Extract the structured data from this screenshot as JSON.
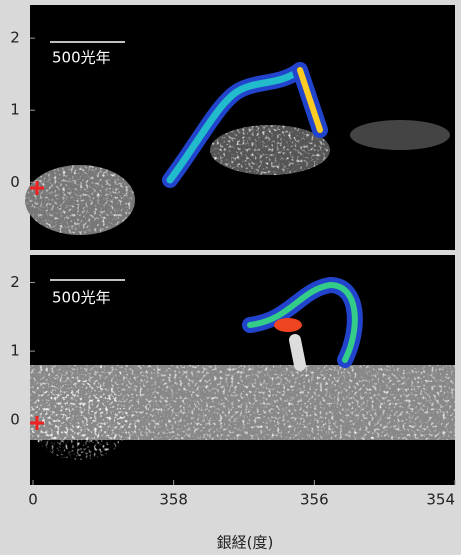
{
  "chart_data": [
    {
      "type": "image",
      "annotation": "500光年",
      "ylim": [
        -0.94,
        2.46
      ],
      "yticks": [
        2,
        1,
        0
      ]
    },
    {
      "type": "image",
      "annotation": "500光年",
      "ylim": [
        -0.95,
        2.4
      ],
      "yticks": [
        2,
        1,
        0
      ],
      "xlim": [
        360,
        354
      ],
      "xticks": [
        {
          "value": 360,
          "label": "0"
        },
        358,
        356,
        354
      ],
      "xlabel": "銀経(度)"
    }
  ]
}
